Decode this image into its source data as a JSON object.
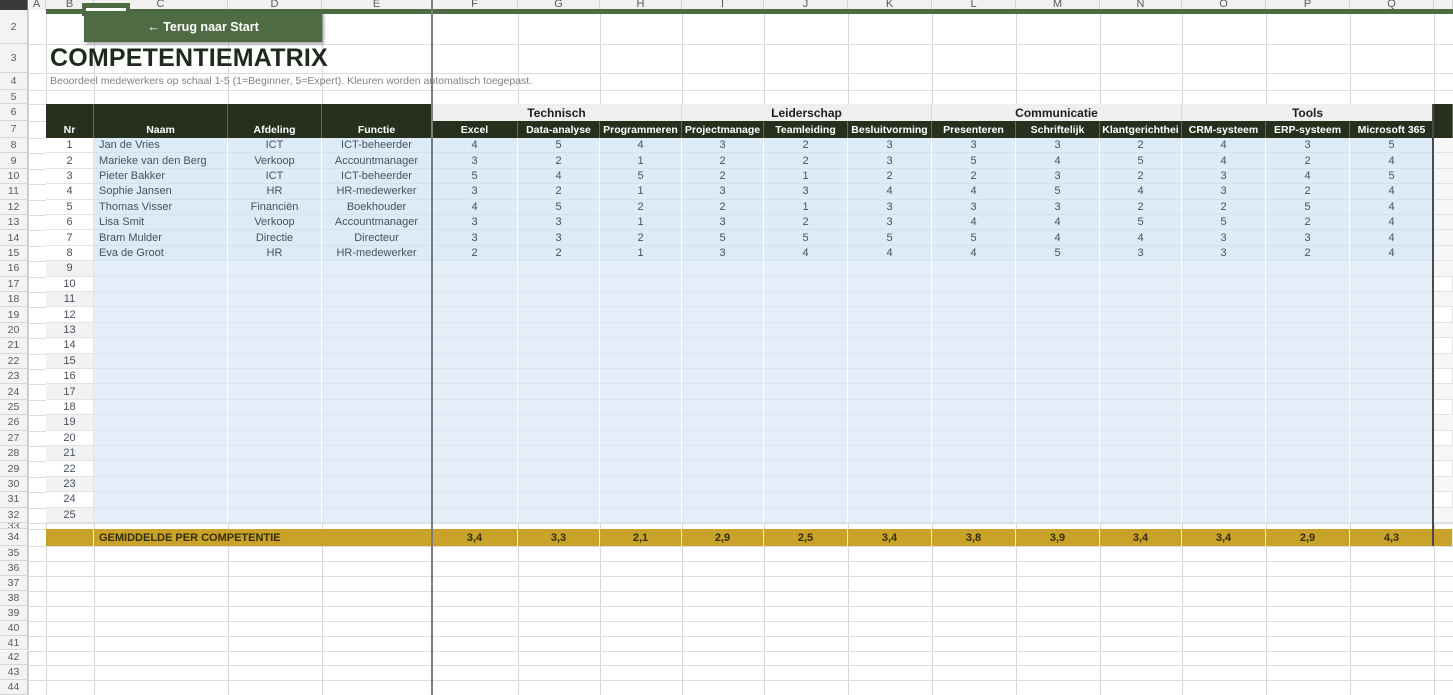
{
  "toolbar": {
    "back_button": "← Terug naar Start"
  },
  "header": {
    "title": "COMPETENTIEMATRIX",
    "subtitle": "Beoordeel medewerkers op schaal 1-5 (1=Beginner, 5=Expert). Kleuren worden automatisch toegepast."
  },
  "matrix": {
    "base_columns": [
      "Nr",
      "Naam",
      "Afdeling",
      "Functie"
    ],
    "category_groups": [
      {
        "label": "Technisch",
        "columns": [
          "Excel",
          "Data-analyse",
          "Programmeren"
        ]
      },
      {
        "label": "Leiderschap",
        "columns": [
          "Projectmanage",
          "Teamleiding",
          "Besluitvorming"
        ]
      },
      {
        "label": "Communicatie",
        "columns": [
          "Presenteren",
          "Schriftelijk",
          "Klantgerichthei"
        ]
      },
      {
        "label": "Tools",
        "columns": [
          "CRM-systeem",
          "ERP-systeem",
          "Microsoft 365"
        ]
      }
    ],
    "employees": [
      {
        "nr": 1,
        "naam": "Jan de Vries",
        "afdeling": "ICT",
        "functie": "ICT-beheerder",
        "scores": [
          4,
          5,
          4,
          3,
          2,
          3,
          3,
          3,
          2,
          4,
          3,
          5
        ]
      },
      {
        "nr": 2,
        "naam": "Marieke van den Berg",
        "afdeling": "Verkoop",
        "functie": "Accountmanager",
        "scores": [
          3,
          2,
          1,
          2,
          2,
          3,
          5,
          4,
          5,
          4,
          2,
          4
        ]
      },
      {
        "nr": 3,
        "naam": "Pieter Bakker",
        "afdeling": "ICT",
        "functie": "ICT-beheerder",
        "scores": [
          5,
          4,
          5,
          2,
          1,
          2,
          2,
          3,
          2,
          3,
          4,
          5
        ]
      },
      {
        "nr": 4,
        "naam": "Sophie Jansen",
        "afdeling": "HR",
        "functie": "HR-medewerker",
        "scores": [
          3,
          2,
          1,
          3,
          3,
          4,
          4,
          5,
          4,
          3,
          2,
          4
        ]
      },
      {
        "nr": 5,
        "naam": "Thomas Visser",
        "afdeling": "Financiën",
        "functie": "Boekhouder",
        "scores": [
          4,
          5,
          2,
          2,
          1,
          3,
          3,
          3,
          2,
          2,
          5,
          4
        ]
      },
      {
        "nr": 6,
        "naam": "Lisa Smit",
        "afdeling": "Verkoop",
        "functie": "Accountmanager",
        "scores": [
          3,
          3,
          1,
          3,
          2,
          3,
          4,
          4,
          5,
          5,
          2,
          4
        ]
      },
      {
        "nr": 7,
        "naam": "Bram Mulder",
        "afdeling": "Directie",
        "functie": "Directeur",
        "scores": [
          3,
          3,
          2,
          5,
          5,
          5,
          5,
          4,
          4,
          3,
          3,
          4
        ]
      },
      {
        "nr": 8,
        "naam": "Eva de Groot",
        "afdeling": "HR",
        "functie": "HR-medewerker",
        "scores": [
          2,
          2,
          1,
          3,
          4,
          4,
          4,
          5,
          3,
          3,
          2,
          4
        ]
      }
    ],
    "empty_row_numbers": [
      9,
      10,
      11,
      12,
      13,
      14,
      15,
      16,
      17,
      18,
      19,
      20,
      21,
      22,
      23,
      24,
      25
    ],
    "summary_row": {
      "label": "GEMIDDELDE PER COMPETENTIE",
      "values": [
        "3,4",
        "3,3",
        "2,1",
        "2,9",
        "2,5",
        "3,4",
        "3,8",
        "3,9",
        "3,4",
        "3,4",
        "2,9",
        "4,3"
      ]
    }
  },
  "spreadsheet": {
    "visible_column_letters": [
      "A",
      "B",
      "C",
      "D",
      "E",
      "F",
      "G",
      "H",
      "I",
      "J",
      "K",
      "L",
      "M",
      "N",
      "O",
      "P",
      "Q"
    ],
    "visible_row_numbers": [
      2,
      3,
      4,
      5,
      6,
      7,
      8,
      9,
      10,
      11,
      12,
      13,
      14,
      15,
      16,
      17,
      18,
      19,
      20,
      21,
      22,
      23,
      24,
      25,
      26,
      27,
      28,
      29,
      30,
      31,
      32,
      33,
      34,
      35,
      36,
      37,
      38,
      39,
      40,
      41,
      42,
      43,
      44
    ]
  },
  "colors": {
    "button_green": "#4E6B44",
    "header_dark_green": "#26301D",
    "category_band_gray": "#EFEFEF",
    "data_cell_blue": "#DDEBF7",
    "empty_cell_blue": "#E4EEF9",
    "summary_gold": "#C9A22A",
    "freeze_divider_gray": "#7C7C7C"
  }
}
